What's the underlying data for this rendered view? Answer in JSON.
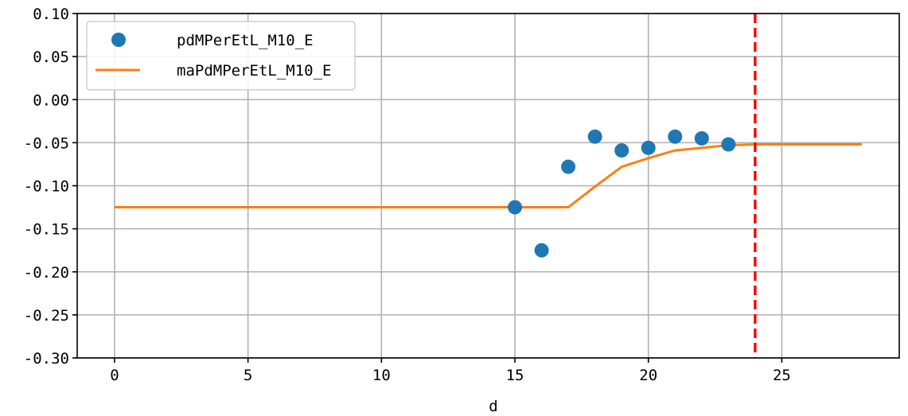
{
  "chart_data": {
    "type": "scatter",
    "title": "",
    "xlabel": "d",
    "ylabel": "",
    "xlim": [
      -1.4,
      29.4
    ],
    "ylim": [
      -0.3,
      0.1
    ],
    "x_ticks": [
      0,
      5,
      10,
      15,
      20,
      25
    ],
    "x_tick_labels": [
      "0",
      "5",
      "10",
      "15",
      "20",
      "25"
    ],
    "y_ticks": [
      0.1,
      0.05,
      0.0,
      -0.05,
      -0.1,
      -0.15,
      -0.2,
      -0.25,
      -0.3
    ],
    "y_tick_labels": [
      "0.10",
      "0.05",
      "0.00",
      "-0.05",
      "-0.10",
      "-0.15",
      "-0.20",
      "-0.25",
      "-0.30"
    ],
    "grid": true,
    "legend_position": "top-left",
    "series": [
      {
        "name": "pdMPerEtL_M10_E",
        "kind": "scatter",
        "color": "#1f77b4",
        "x": [
          15,
          16,
          17,
          18,
          19,
          20,
          21,
          22,
          23
        ],
        "y": [
          -0.125,
          -0.175,
          -0.078,
          -0.043,
          -0.059,
          -0.056,
          -0.043,
          -0.045,
          -0.052
        ]
      },
      {
        "name": "maPdMPerEtL_M10_E",
        "kind": "line",
        "color": "#ff7f0e",
        "x": [
          0,
          1,
          2,
          3,
          4,
          5,
          6,
          7,
          8,
          9,
          10,
          11,
          12,
          13,
          14,
          15,
          16,
          17,
          18,
          19,
          20,
          21,
          22,
          23,
          24,
          25,
          26,
          27,
          28
        ],
        "y": [
          -0.125,
          -0.125,
          -0.125,
          -0.125,
          -0.125,
          -0.125,
          -0.125,
          -0.125,
          -0.125,
          -0.125,
          -0.125,
          -0.125,
          -0.125,
          -0.125,
          -0.125,
          -0.125,
          -0.125,
          -0.125,
          -0.101,
          -0.078,
          -0.068,
          -0.059,
          -0.056,
          -0.053,
          -0.052,
          -0.052,
          -0.052,
          -0.052,
          -0.052
        ]
      }
    ],
    "vline": {
      "x": 24,
      "color": "#ff0000",
      "style": "dashed"
    }
  }
}
